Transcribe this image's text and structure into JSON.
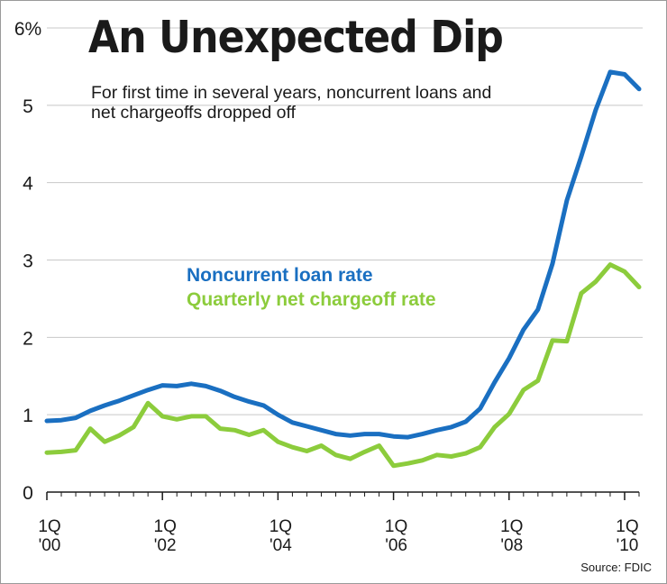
{
  "chart_data": {
    "type": "line",
    "title": "An Unexpected Dip",
    "subtitle": "For first time in several years, noncurrent loans and net chargeoffs dropped off",
    "source": "Source: FDIC",
    "ylim": [
      0,
      6
    ],
    "yticks": [
      "0",
      "1",
      "2",
      "3",
      "4",
      "5",
      "6%"
    ],
    "xticks": [
      {
        "quarter": "1Q",
        "year": "'00"
      },
      {
        "quarter": "1Q",
        "year": "'02"
      },
      {
        "quarter": "1Q",
        "year": "'04"
      },
      {
        "quarter": "1Q",
        "year": "'06"
      },
      {
        "quarter": "1Q",
        "year": "'08"
      },
      {
        "quarter": "1Q",
        "year": "'10"
      }
    ],
    "x": [
      "1Q00",
      "2Q00",
      "3Q00",
      "4Q00",
      "1Q01",
      "2Q01",
      "3Q01",
      "4Q01",
      "1Q02",
      "2Q02",
      "3Q02",
      "4Q02",
      "1Q03",
      "2Q03",
      "3Q03",
      "4Q03",
      "1Q04",
      "2Q04",
      "3Q04",
      "4Q04",
      "1Q05",
      "2Q05",
      "3Q05",
      "4Q05",
      "1Q06",
      "2Q06",
      "3Q06",
      "4Q06",
      "1Q07",
      "2Q07",
      "3Q07",
      "4Q07",
      "1Q08",
      "2Q08",
      "3Q08",
      "4Q08",
      "1Q09",
      "2Q09",
      "3Q09",
      "4Q09",
      "1Q10",
      "2Q10"
    ],
    "series": [
      {
        "name": "Noncurrent loan rate",
        "color": "#1a6fc1",
        "values": [
          0.92,
          0.93,
          0.96,
          1.05,
          1.12,
          1.18,
          1.25,
          1.32,
          1.38,
          1.37,
          1.4,
          1.37,
          1.31,
          1.23,
          1.17,
          1.12,
          1.0,
          0.9,
          0.85,
          0.8,
          0.75,
          0.73,
          0.75,
          0.75,
          0.72,
          0.71,
          0.75,
          0.8,
          0.84,
          0.91,
          1.08,
          1.42,
          1.73,
          2.1,
          2.36,
          2.95,
          3.77,
          4.34,
          4.94,
          5.43,
          5.4,
          5.21
        ]
      },
      {
        "name": "Quarterly net chargeoff rate",
        "color": "#8ccc3c",
        "values": [
          0.51,
          0.52,
          0.54,
          0.82,
          0.65,
          0.73,
          0.84,
          1.15,
          0.98,
          0.94,
          0.98,
          0.98,
          0.82,
          0.8,
          0.74,
          0.8,
          0.65,
          0.58,
          0.53,
          0.6,
          0.48,
          0.43,
          0.52,
          0.6,
          0.34,
          0.37,
          0.41,
          0.48,
          0.46,
          0.5,
          0.58,
          0.84,
          1.01,
          1.32,
          1.44,
          1.96,
          1.95,
          2.57,
          2.72,
          2.94,
          2.85,
          2.65
        ]
      }
    ],
    "grid": true,
    "legend": "center-left"
  }
}
